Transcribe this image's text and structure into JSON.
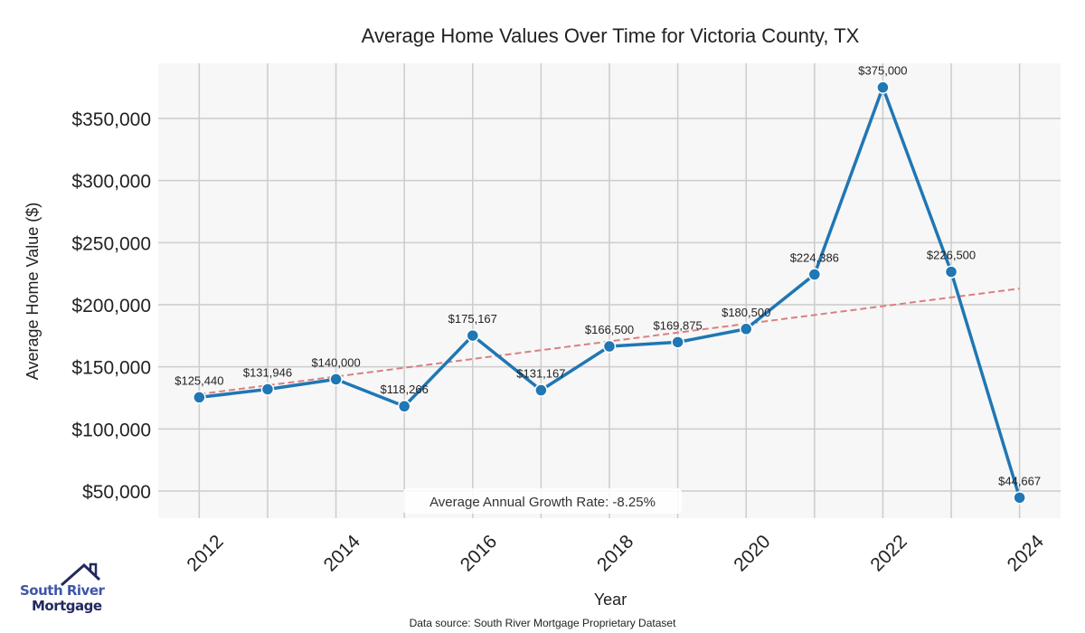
{
  "chart_data": {
    "type": "line",
    "title": "Average Home Values Over Time for Victoria County, TX",
    "xlabel": "Year",
    "ylabel": "Average Home Value ($)",
    "x": [
      2012,
      2013,
      2014,
      2015,
      2016,
      2017,
      2018,
      2019,
      2020,
      2021,
      2022,
      2023,
      2024
    ],
    "series": [
      {
        "name": "Average Home Value",
        "color": "#1f77b4",
        "values": [
          125440,
          131946,
          140000,
          118266,
          175167,
          131167,
          166500,
          169875,
          180500,
          224386,
          375000,
          226500,
          44667
        ],
        "labels": [
          "$125,440",
          "$131,946",
          "$140,000",
          "$118,266",
          "$175,167",
          "$131,167",
          "$166,500",
          "$169,875",
          "$180,500",
          "$224,386",
          "$375,000",
          "$226,500",
          "$44,667"
        ]
      },
      {
        "name": "Trend",
        "color": "#d98080",
        "style": "dashed",
        "x": [
          2012,
          2024
        ],
        "values": [
          128000,
          213000
        ]
      }
    ],
    "xticks": [
      "2012",
      "2014",
      "2016",
      "2018",
      "2020",
      "2022",
      "2024"
    ],
    "yticks": [
      50000,
      100000,
      150000,
      200000,
      250000,
      300000,
      350000
    ],
    "ytick_labels": [
      "$50,000",
      "$100,000",
      "$150,000",
      "$200,000",
      "$250,000",
      "$300,000",
      "$350,000"
    ],
    "xlim": [
      2011.4,
      2024.6
    ],
    "ylim": [
      28160,
      394400
    ],
    "grid": true,
    "annotation": "Average Annual Growth Rate: -8.25%",
    "source": "Data source: South River Mortgage Proprietary Dataset"
  },
  "logo": {
    "line1": "South River",
    "line2": "Mortgage"
  }
}
